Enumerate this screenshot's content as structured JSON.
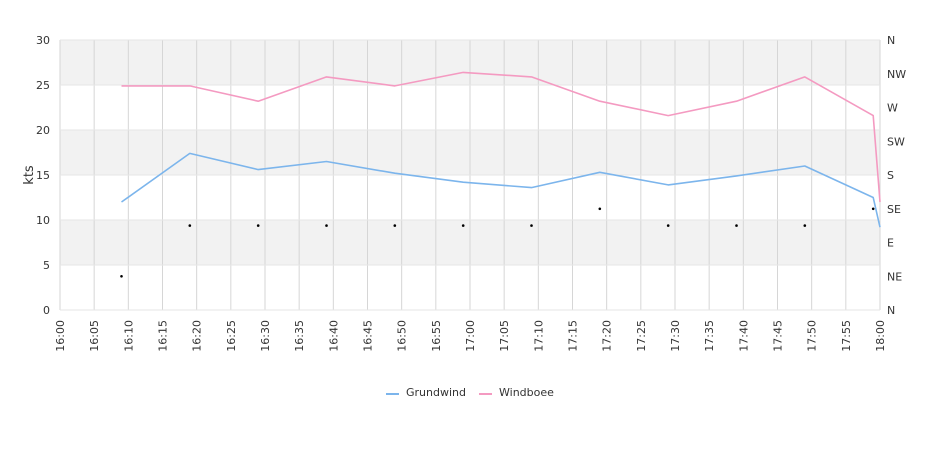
{
  "chart_data": {
    "type": "line",
    "ylabel": "kts",
    "ylim": [
      0,
      30
    ],
    "y_ticks": [
      "0",
      "5",
      "10",
      "15",
      "20",
      "25",
      "30"
    ],
    "x_tick_labels": [
      "16:00",
      "16:05",
      "16:10",
      "16:15",
      "16:20",
      "16:25",
      "16:30",
      "16:35",
      "16:40",
      "16:45",
      "16:50",
      "16:55",
      "17:00",
      "17:05",
      "17:10",
      "17:15",
      "17:20",
      "17:25",
      "17:30",
      "17:35",
      "17:40",
      "17:45",
      "17:50",
      "17:55",
      "18:00"
    ],
    "direction_axis_labels": [
      "N",
      "NW",
      "W",
      "SW",
      "S",
      "SE",
      "E",
      "NE",
      "N"
    ],
    "x": [
      "16:09",
      "16:19",
      "16:29",
      "16:39",
      "16:49",
      "16:59",
      "17:09",
      "17:19",
      "17:29",
      "17:39",
      "17:49",
      "17:59",
      "18:00"
    ],
    "series": [
      {
        "name": "Grundwind",
        "color": "#7cb5ec",
        "values": [
          12.0,
          17.4,
          15.6,
          16.5,
          15.2,
          14.2,
          13.6,
          15.3,
          13.9,
          14.9,
          16.0,
          12.5,
          9.2
        ]
      },
      {
        "name": "Windboee",
        "color": "#f49ac1",
        "values": [
          24.9,
          24.9,
          23.2,
          25.9,
          24.9,
          26.4,
          25.9,
          23.2,
          21.6,
          23.2,
          25.9,
          21.6,
          12.0
        ]
      }
    ],
    "direction_markers": {
      "x": [
        "16:09",
        "16:19",
        "16:29",
        "16:39",
        "16:49",
        "16:59",
        "17:09",
        "17:19",
        "17:29",
        "17:39",
        "17:49",
        "17:59"
      ],
      "degrees": [
        315,
        247.5,
        247.5,
        247.5,
        247.5,
        247.5,
        247.5,
        225,
        247.5,
        247.5,
        247.5,
        225
      ]
    },
    "grid": true,
    "legend_position": "bottom-center"
  }
}
